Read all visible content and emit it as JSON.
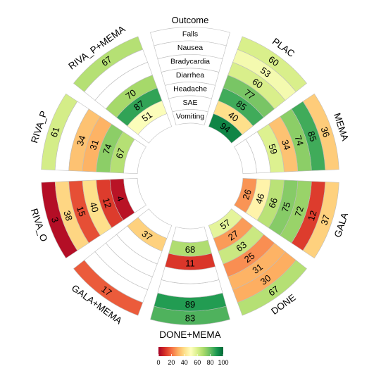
{
  "chart_data": {
    "type": "circular-heatmap",
    "outcome_title": "Outcome",
    "outcomes": [
      "Falls",
      "Nausea",
      "Bradycardia",
      "Diarrhea",
      "Headache",
      "SAE",
      "Vomiting"
    ],
    "treatments": [
      "PLAC",
      "MEMA",
      "GALA",
      "DONE",
      "DONE+MEMA",
      "GALA+MEMA",
      "RIVA_O",
      "RIVA_P",
      "RIVA_P+MEMA"
    ],
    "values": {
      "PLAC": [
        60,
        53,
        60,
        77,
        85,
        40,
        94
      ],
      "MEMA": [
        36,
        85,
        74,
        34,
        59,
        null,
        null
      ],
      "GALA": [
        37,
        12,
        72,
        75,
        66,
        46,
        26
      ],
      "DONE": [
        67,
        30,
        31,
        25,
        63,
        27,
        57
      ],
      "DONE+MEMA": [
        83,
        89,
        null,
        null,
        11,
        68,
        null
      ],
      "GALA+MEMA": [
        17,
        null,
        null,
        null,
        null,
        37,
        null
      ],
      "RIVA_O": [
        3,
        38,
        15,
        40,
        12,
        4,
        null
      ],
      "RIVA_P": [
        61,
        null,
        34,
        31,
        74,
        67,
        null
      ],
      "RIVA_P+MEMA": [
        67,
        null,
        null,
        70,
        87,
        51,
        null
      ]
    },
    "legend": {
      "ticks": [
        0,
        20,
        40,
        60,
        80,
        100
      ],
      "range": [
        0,
        100
      ],
      "colors": [
        "#a50026",
        "#d73027",
        "#f46d43",
        "#fdae61",
        "#fee08b",
        "#ffffbf",
        "#d9ef8b",
        "#a6d96a",
        "#66bd63",
        "#1a9850",
        "#006837"
      ]
    }
  }
}
